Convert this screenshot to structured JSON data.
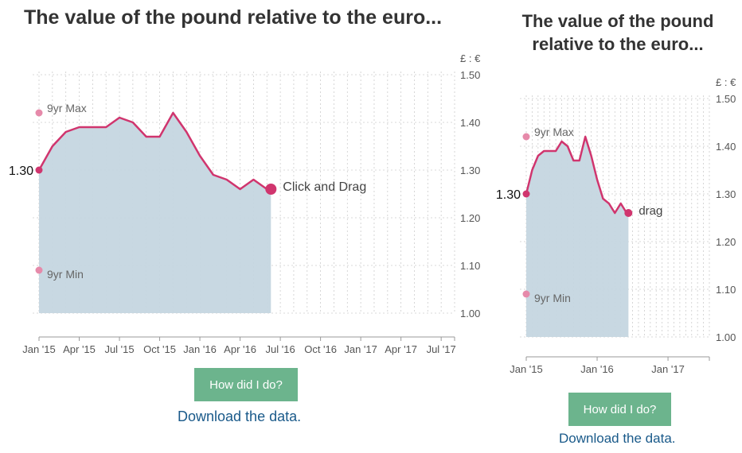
{
  "wide": {
    "title": "The value of the pound relative to the euro...",
    "button_label": "How did I do?",
    "download_label": "Download the data.",
    "unit_label": "£ : €",
    "start_label": "1.30",
    "max_label": "9yr Max",
    "min_label": "9yr Min",
    "drag_label": "Click and Drag"
  },
  "narrow": {
    "title_line1": "The value of the pound",
    "title_line2": "relative to the euro...",
    "button_label": "How did I do?",
    "download_label": "Download the data.",
    "unit_label": "£ : €",
    "start_label": "1.30",
    "max_label": "9yr Max",
    "min_label": "9yr Min",
    "drag_label": "drag"
  },
  "chart_data": [
    {
      "type": "area",
      "title": "The value of the pound relative to the euro...",
      "ylabel": "£ : €",
      "ylim": [
        1.0,
        1.5
      ],
      "yticks": [
        1.5,
        1.4,
        1.3,
        1.2,
        1.1,
        1.0
      ],
      "ytick_labels": [
        "1.50",
        "1.40",
        "1.30",
        "1.20",
        "1.10",
        "1.00"
      ],
      "xlim": [
        "2015-01",
        "2017-08"
      ],
      "xtick_labels": [
        "Jan '15",
        "Apr '15",
        "Jul '15",
        "Oct '15",
        "Jan '16",
        "Apr '16",
        "Jul '16",
        "Oct '16",
        "Jan '17",
        "Apr '17",
        "Jul '17"
      ],
      "xtick_months": [
        0,
        3,
        6,
        9,
        12,
        15,
        18,
        21,
        24,
        27,
        30
      ],
      "grid": true,
      "series": [
        {
          "months": [
            0,
            1,
            2,
            3,
            4,
            5,
            6,
            7,
            8,
            9,
            10,
            11,
            12,
            13,
            14,
            15,
            16,
            17,
            17.3
          ],
          "values": [
            1.3,
            1.35,
            1.38,
            1.39,
            1.39,
            1.39,
            1.41,
            1.4,
            1.37,
            1.37,
            1.42,
            1.38,
            1.33,
            1.29,
            1.28,
            1.26,
            1.28,
            1.26,
            1.26
          ]
        }
      ],
      "annotations": [
        {
          "label": "9yr Max",
          "value": 1.42
        },
        {
          "label": "9yr Min",
          "value": 1.09
        },
        {
          "label": "1.30",
          "value": 1.3
        }
      ]
    },
    {
      "type": "area",
      "title": "The value of the pound relative to the euro...",
      "ylabel": "£ : €",
      "ylim": [
        1.0,
        1.5
      ],
      "yticks": [
        1.5,
        1.4,
        1.3,
        1.2,
        1.1,
        1.0
      ],
      "ytick_labels": [
        "1.50",
        "1.40",
        "1.30",
        "1.20",
        "1.10",
        "1.00"
      ],
      "xlim": [
        "2015-01",
        "2017-08"
      ],
      "xtick_labels": [
        "Jan '15",
        "Jan '16",
        "Jan '17"
      ],
      "xtick_months": [
        0,
        12,
        24
      ],
      "grid": true,
      "series": [
        {
          "months": [
            0,
            1,
            2,
            3,
            4,
            5,
            6,
            7,
            8,
            9,
            10,
            11,
            12,
            13,
            14,
            15,
            16,
            17,
            17.3
          ],
          "values": [
            1.3,
            1.35,
            1.38,
            1.39,
            1.39,
            1.39,
            1.41,
            1.4,
            1.37,
            1.37,
            1.42,
            1.38,
            1.33,
            1.29,
            1.28,
            1.26,
            1.28,
            1.26,
            1.26
          ]
        }
      ],
      "annotations": [
        {
          "label": "9yr Max",
          "value": 1.42
        },
        {
          "label": "9yr Min",
          "value": 1.09
        },
        {
          "label": "1.30",
          "value": 1.3
        }
      ]
    }
  ],
  "colors": {
    "line": "#d0356e",
    "area": "#c5d6e0",
    "annotation_dot": "#e68aaa",
    "grid": "#cccccc",
    "button": "#6cb48d",
    "link": "#1a5a8a"
  }
}
